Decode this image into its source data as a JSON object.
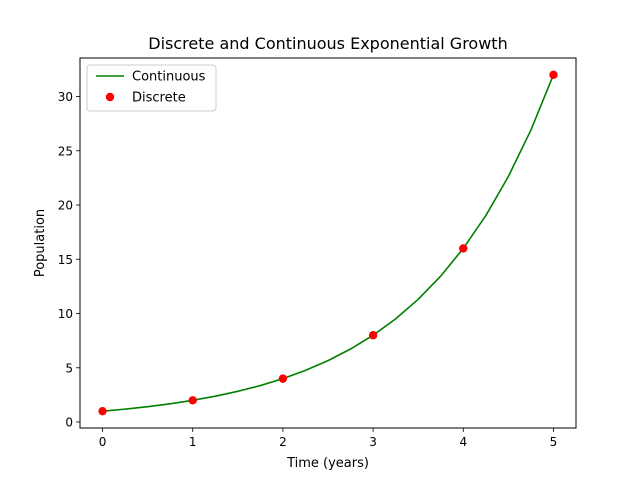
{
  "chart_data": {
    "type": "line",
    "title": "Discrete and Continuous Exponential Growth",
    "xlabel": "Time (years)",
    "ylabel": "Population",
    "xlim": [
      -0.25,
      5.25
    ],
    "ylim": [
      -0.55,
      33.55
    ],
    "xticks": [
      0,
      1,
      2,
      3,
      4,
      5
    ],
    "yticks": [
      0,
      5,
      10,
      15,
      20,
      25,
      30
    ],
    "grid": false,
    "legend_position": "upper left",
    "series": [
      {
        "name": "Continuous",
        "kind": "line",
        "color": "#008000",
        "x": [
          0,
          0.25,
          0.5,
          0.75,
          1,
          1.25,
          1.5,
          1.75,
          2,
          2.25,
          2.5,
          2.75,
          3,
          3.25,
          3.5,
          3.75,
          4,
          4.25,
          4.5,
          4.75,
          5
        ],
        "y": [
          1,
          1.19,
          1.41,
          1.68,
          2,
          2.38,
          2.83,
          3.36,
          4,
          4.76,
          5.66,
          6.73,
          8,
          9.51,
          11.31,
          13.45,
          16,
          19.03,
          22.63,
          26.91,
          32
        ]
      },
      {
        "name": "Discrete",
        "kind": "markers",
        "color": "#ff0000",
        "x": [
          0,
          1,
          2,
          3,
          4,
          5
        ],
        "y": [
          1,
          2,
          4,
          8,
          16,
          32
        ]
      }
    ]
  }
}
